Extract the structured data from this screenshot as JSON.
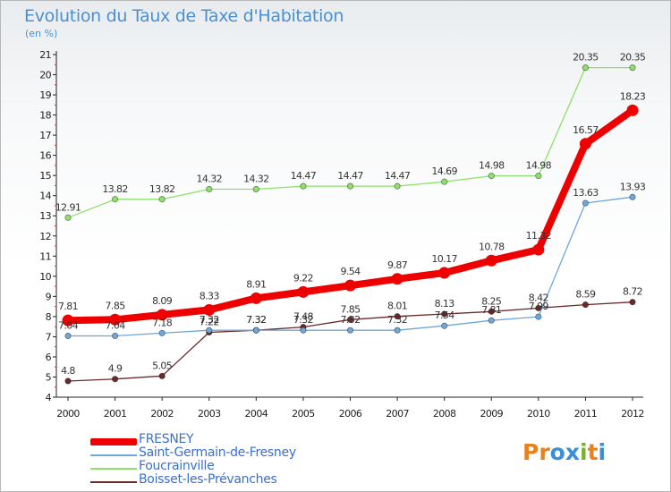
{
  "header": {
    "title": "Evolution du Taux de Taxe d'Habitation",
    "unit": "(en %)"
  },
  "logo": {
    "text": "Proxiti",
    "letters": [
      "P",
      "r",
      "o",
      "x",
      "i",
      "t",
      "i"
    ],
    "colors": [
      "#e8821e",
      "#e8821e",
      "#3a8fd8",
      "#3a8fd8",
      "#7ab22e",
      "#e8821e",
      "#3a8fd8"
    ]
  },
  "chart_data": {
    "type": "line",
    "x": [
      "2000",
      "2001",
      "2002",
      "2003",
      "2004",
      "2005",
      "2006",
      "2007",
      "2008",
      "2009",
      "2010",
      "2011",
      "2012"
    ],
    "ylim": [
      4,
      21
    ],
    "yticks": [
      4,
      5,
      6,
      7,
      8,
      9,
      10,
      11,
      12,
      13,
      14,
      15,
      16,
      17,
      18,
      19,
      20,
      21
    ],
    "grid": false,
    "legend_placement": "bottom-left",
    "series": [
      {
        "name": "Boisset-les-Prévanches",
        "color": "#6b2a2a",
        "width": 1.3,
        "values": [
          4.8,
          4.9,
          5.05,
          7.22,
          7.32,
          7.48,
          7.85,
          8.01,
          8.13,
          8.25,
          8.42,
          8.59,
          8.72
        ],
        "labels": [
          "4.8",
          "4.9",
          "5.05",
          "7.22",
          "7.32",
          "7.48",
          "7.85",
          "8.01",
          "8.13",
          "8.25",
          "8.42",
          "8.59",
          "8.72"
        ]
      },
      {
        "name": "Foucrainville",
        "color": "#8ee06a",
        "width": 1.3,
        "values": [
          12.91,
          13.82,
          13.82,
          14.32,
          14.32,
          14.47,
          14.47,
          14.47,
          14.69,
          14.98,
          14.98,
          20.35,
          20.35
        ],
        "labels": [
          "12.91",
          "13.82",
          "13.82",
          "14.32",
          "14.32",
          "14.47",
          "14.47",
          "14.47",
          "14.69",
          "14.98",
          "14.98",
          "20.35",
          "20.35"
        ]
      },
      {
        "name": "Saint-Germain-de-Fresney",
        "color": "#6ea7d8",
        "width": 1.3,
        "values": [
          7.04,
          7.04,
          7.18,
          7.32,
          7.32,
          7.32,
          7.32,
          7.32,
          7.54,
          7.81,
          7.99,
          13.63,
          13.93
        ],
        "labels": [
          "7.04",
          "7.04",
          "7.18",
          "7.32",
          "7.32",
          "7.32",
          "7.32",
          "7.32",
          "7.54",
          "7.81",
          "7.99",
          "13.63",
          "13.93"
        ]
      },
      {
        "name": "FRESNEY",
        "color": "#ee0000",
        "width": 8,
        "values": [
          7.81,
          7.85,
          8.09,
          8.33,
          8.91,
          9.22,
          9.54,
          9.87,
          10.17,
          10.78,
          11.32,
          16.57,
          18.23
        ],
        "labels": [
          "7.81",
          "7.85",
          "8.09",
          "8.33",
          "8.91",
          "9.22",
          "9.54",
          "9.87",
          "10.17",
          "10.78",
          "11.32",
          "16.57",
          "18.23"
        ]
      }
    ]
  }
}
